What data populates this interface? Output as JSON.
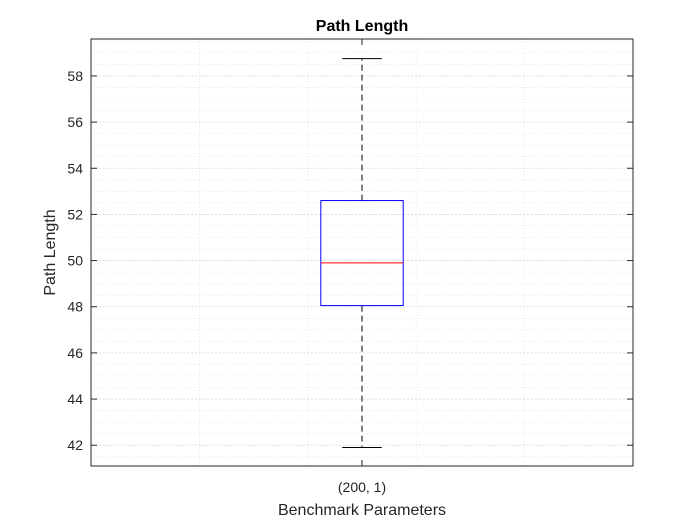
{
  "chart_data": {
    "type": "box",
    "title": "Path Length",
    "xlabel": "Benchmark Parameters",
    "ylabel": "Path Length",
    "categories": [
      "(200, 1)"
    ],
    "boxes": [
      {
        "category": "(200, 1)",
        "whisker_low": 41.9,
        "q1": 48.05,
        "median": 49.9,
        "q3": 52.6,
        "whisker_high": 58.75
      }
    ],
    "ylim": [
      41.1,
      59.6
    ],
    "yticks": [
      42,
      44,
      46,
      48,
      50,
      52,
      54,
      56,
      58
    ],
    "grid": true,
    "minor_grid": true,
    "colors": {
      "box": "#0000ff",
      "median": "#ff0000",
      "whisker": "#000000",
      "grid": "#dcdcdc",
      "axes": "#262626"
    }
  }
}
